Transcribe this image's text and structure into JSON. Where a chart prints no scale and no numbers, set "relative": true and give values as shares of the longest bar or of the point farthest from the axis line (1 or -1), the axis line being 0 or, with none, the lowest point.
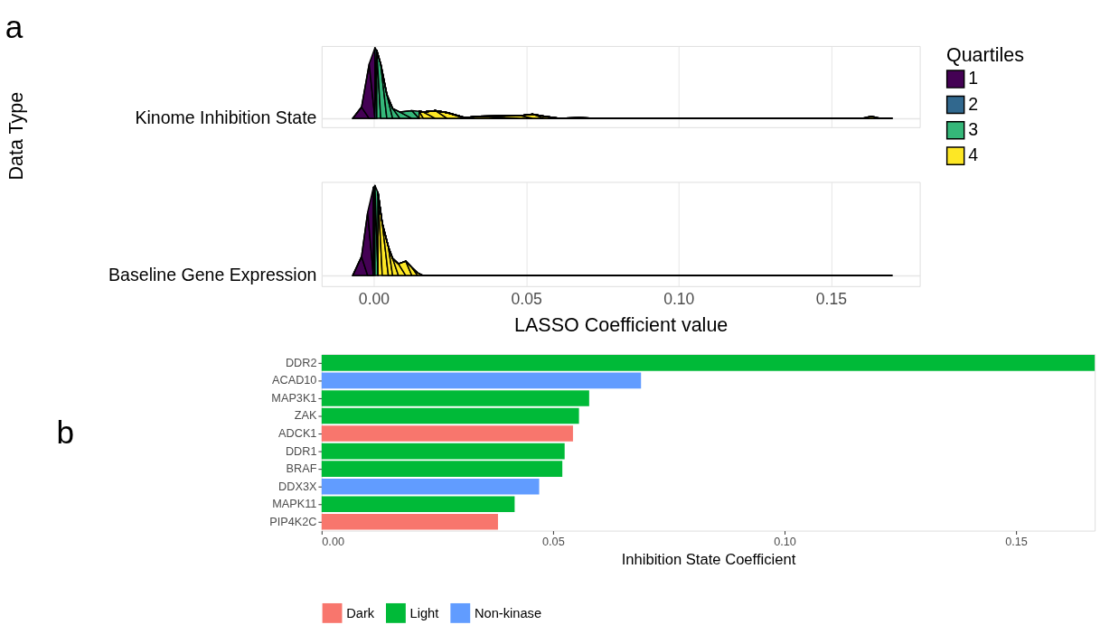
{
  "chart_data": [
    {
      "type": "area",
      "relative": true,
      "ylabel": "Kinome Inhibition State",
      "legend_title": "Quartiles",
      "legend": "right",
      "grid": true,
      "tick_labels": false,
      "annotations": [
        "a",
        "Data Type"
      ],
      "xlim": [
        -0.0171,
        0.1791
      ],
      "xticks": [
        0,
        0.05,
        0.1,
        0.15
      ],
      "series": [
        {
          "name": "1",
          "color": "#440154",
          "x": [
            -0.0069,
            -0.004,
            -0.0015,
            0.0004
          ],
          "values": [
            0,
            0.16,
            0.77,
            1
          ]
        },
        {
          "name": "2",
          "color": "#31688e",
          "x": [
            0.0004,
            0.001
          ],
          "values": [
            1,
            0.96
          ]
        },
        {
          "name": "3",
          "color": "#35b779",
          "x": [
            0.001,
            0.0023,
            0.0043,
            0.0062,
            0.0086,
            0.0125,
            0.0149
          ],
          "values": [
            0.96,
            0.77,
            0.34,
            0.14,
            0.09,
            0.11,
            0.1
          ]
        },
        {
          "name": "4",
          "color": "#fde725",
          "x": [
            0.0149,
            0.0163,
            0.0202,
            0.0241,
            0.0299,
            0.0347,
            0.0482,
            0.0521,
            0.0559,
            0.0608,
            0.0675,
            0.0724,
            0.1603,
            0.1632,
            0.1661,
            0.1699
          ],
          "values": [
            0.1,
            0.09,
            0.11,
            0.08,
            0.01,
            0.03,
            0.04,
            0.06,
            0.03,
            0,
            0.01,
            0,
            0,
            0.03,
            0,
            0
          ]
        }
      ]
    },
    {
      "type": "area",
      "relative": true,
      "ylabel": "Baseline Gene Expression",
      "xlabel": "LASSO Coefficient value",
      "grid": true,
      "xlim": [
        -0.0171,
        0.1791
      ],
      "xticks": [
        {
          "value": 0,
          "label": "0.00"
        },
        {
          "value": 0.05,
          "label": "0.05"
        },
        {
          "value": 0.1,
          "label": "0.10"
        },
        {
          "value": 0.15,
          "label": "0.15"
        }
      ],
      "series": [
        {
          "name": "1",
          "color": "#440154",
          "x": [
            -0.0069,
            -0.004,
            -0.002,
            -0.0001
          ],
          "values": [
            0,
            0.21,
            0.7,
            0.98
          ]
        },
        {
          "name": "2",
          "color": "#31688e",
          "x": [
            -0.0001,
            0.0004
          ],
          "values": [
            0.98,
            1.0
          ]
        },
        {
          "name": "3",
          "color": "#35b779",
          "x": [
            0.0004,
            0.0014
          ],
          "values": [
            1.0,
            0.92
          ]
        },
        {
          "name": "4",
          "color": "#fde725",
          "x": [
            0.0014,
            0.0028,
            0.0048,
            0.0062,
            0.0081,
            0.0105,
            0.0125,
            0.0144,
            0.0163,
            0.1699
          ],
          "values": [
            0.92,
            0.58,
            0.32,
            0.19,
            0.13,
            0.16,
            0.09,
            0.03,
            0,
            0
          ]
        }
      ]
    },
    {
      "type": "bar",
      "orientation": "horizontal",
      "xlabel": "Inhibition State Coefficient",
      "legend": "bottom",
      "annotations": [
        "b"
      ],
      "categories": [
        "DDR2",
        "ACAD10",
        "MAP3K1",
        "ZAK",
        "ADCK1",
        "DDR1",
        "BRAF",
        "DDX3X",
        "MAPK11",
        "PIP4K2C"
      ],
      "xlim": [
        0,
        0.167
      ],
      "xticks": [
        {
          "value": 0,
          "label": "0.00"
        },
        {
          "value": 0.05,
          "label": "0.05"
        },
        {
          "value": 0.1,
          "label": "0.10"
        },
        {
          "value": 0.15,
          "label": "0.15"
        }
      ],
      "series": [
        {
          "name": "Dark",
          "color": "#f8766d",
          "values": [
            null,
            null,
            null,
            null,
            0.0543,
            null,
            null,
            null,
            null,
            0.0381
          ]
        },
        {
          "name": "Light",
          "color": "#00ba38",
          "values": [
            0.167,
            null,
            0.0578,
            0.0556,
            null,
            0.0525,
            0.052,
            null,
            0.0417,
            null
          ]
        },
        {
          "name": "Non-kinase",
          "color": "#619cff",
          "values": [
            null,
            0.069,
            null,
            null,
            null,
            null,
            null,
            0.047,
            null,
            null
          ]
        }
      ]
    }
  ]
}
